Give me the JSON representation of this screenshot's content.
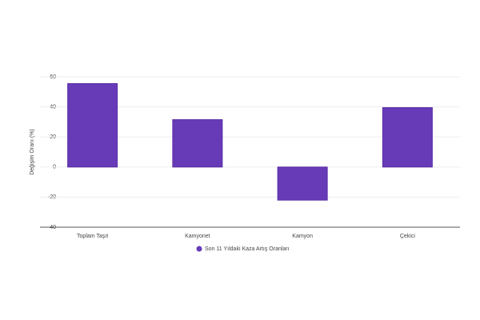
{
  "chart_data": {
    "type": "bar",
    "y_label": "Değişim Oranı (%)",
    "categories": [
      "Toplam Taşıt",
      "Kamyonet",
      "Kamyon",
      "Çekici"
    ],
    "series": [
      {
        "name": "Son 11 Yıldaki Kaza Artış Oranları",
        "color": "#673ab7",
        "values": [
          55.5,
          31.5,
          -22,
          39.5
        ]
      }
    ],
    "ylim": [
      -40,
      60
    ],
    "yticks": [
      -40,
      -20,
      0,
      20,
      40,
      60
    ],
    "grid": true,
    "legend": "bottom"
  }
}
